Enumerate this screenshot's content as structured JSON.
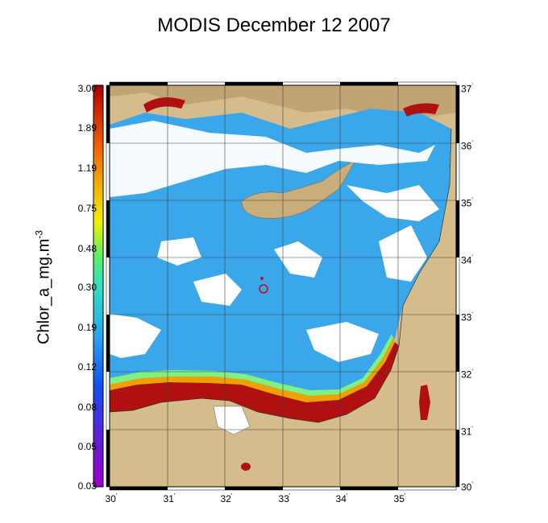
{
  "title": "MODIS December 12 2007",
  "colorbar": {
    "label_base": "Chlor_a_mg.m",
    "label_exp": "-3",
    "ticks": [
      "3.00",
      "1.89",
      "1.19",
      "0.75",
      "0.48",
      "0.30",
      "0.19",
      "0.12",
      "0.08",
      "0.05",
      "0.03"
    ]
  },
  "axes": {
    "lon_ticks": [
      "30",
      "31",
      "32",
      "33",
      "34",
      "35"
    ],
    "lat_ticks": [
      "37",
      "36",
      "35",
      "34",
      "33",
      "32",
      "31",
      "30"
    ],
    "lon_range": [
      30,
      36
    ],
    "lat_range": [
      30,
      37
    ]
  },
  "colors": {
    "land": "#d4bc8c",
    "sea_blue": "#3aa7ea",
    "coastal_red": "#b01010",
    "cloud": "#ffffff"
  }
}
